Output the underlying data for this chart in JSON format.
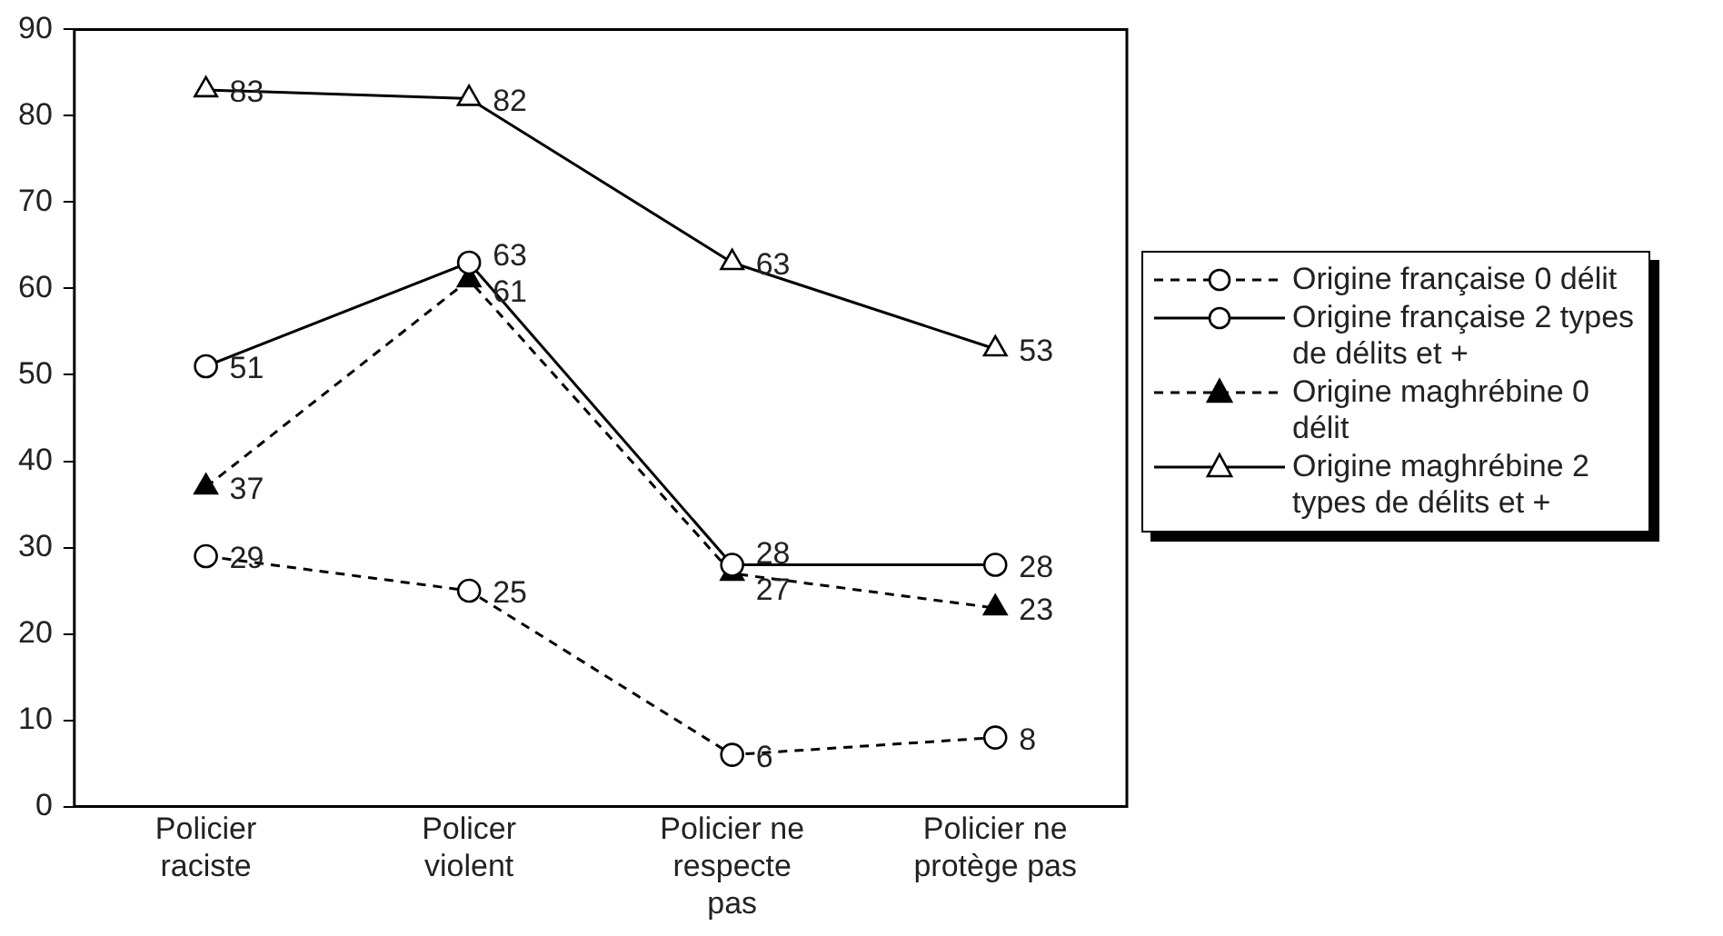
{
  "chart_data": {
    "type": "line",
    "categories": [
      "Policier raciste",
      "Policer violent",
      "Policier ne respecte pas",
      "Policier ne protège pas"
    ],
    "series": [
      {
        "name": "Origine française 0 délit",
        "color": "#000000",
        "values": [
          29,
          25,
          6,
          8
        ],
        "marker": "circle",
        "line_style": "dashed"
      },
      {
        "name": "Origine française 2 types de délits et +",
        "color": "#000000",
        "values": [
          51,
          63,
          28,
          28
        ],
        "marker": "circle",
        "line_style": "solid"
      },
      {
        "name": "Origine maghrébine 0 délit",
        "color": "#000000",
        "values": [
          37,
          61,
          27,
          23
        ],
        "marker": "triangle",
        "line_style": "dashed",
        "colors": [
          "#000000",
          "#000000",
          "#000000",
          "#000000"
        ]
      },
      {
        "name": "Origine maghrébine 2 types de délits et +",
        "color": "#000000",
        "values": [
          83,
          82,
          63,
          53
        ],
        "marker": "triangle",
        "line_style": "solid"
      }
    ],
    "ylim": [
      0,
      90
    ],
    "yticks": [
      0,
      10,
      20,
      30,
      40,
      50,
      60,
      70,
      80,
      90
    ],
    "grid": false,
    "legend": "right",
    "data_labels": true
  }
}
